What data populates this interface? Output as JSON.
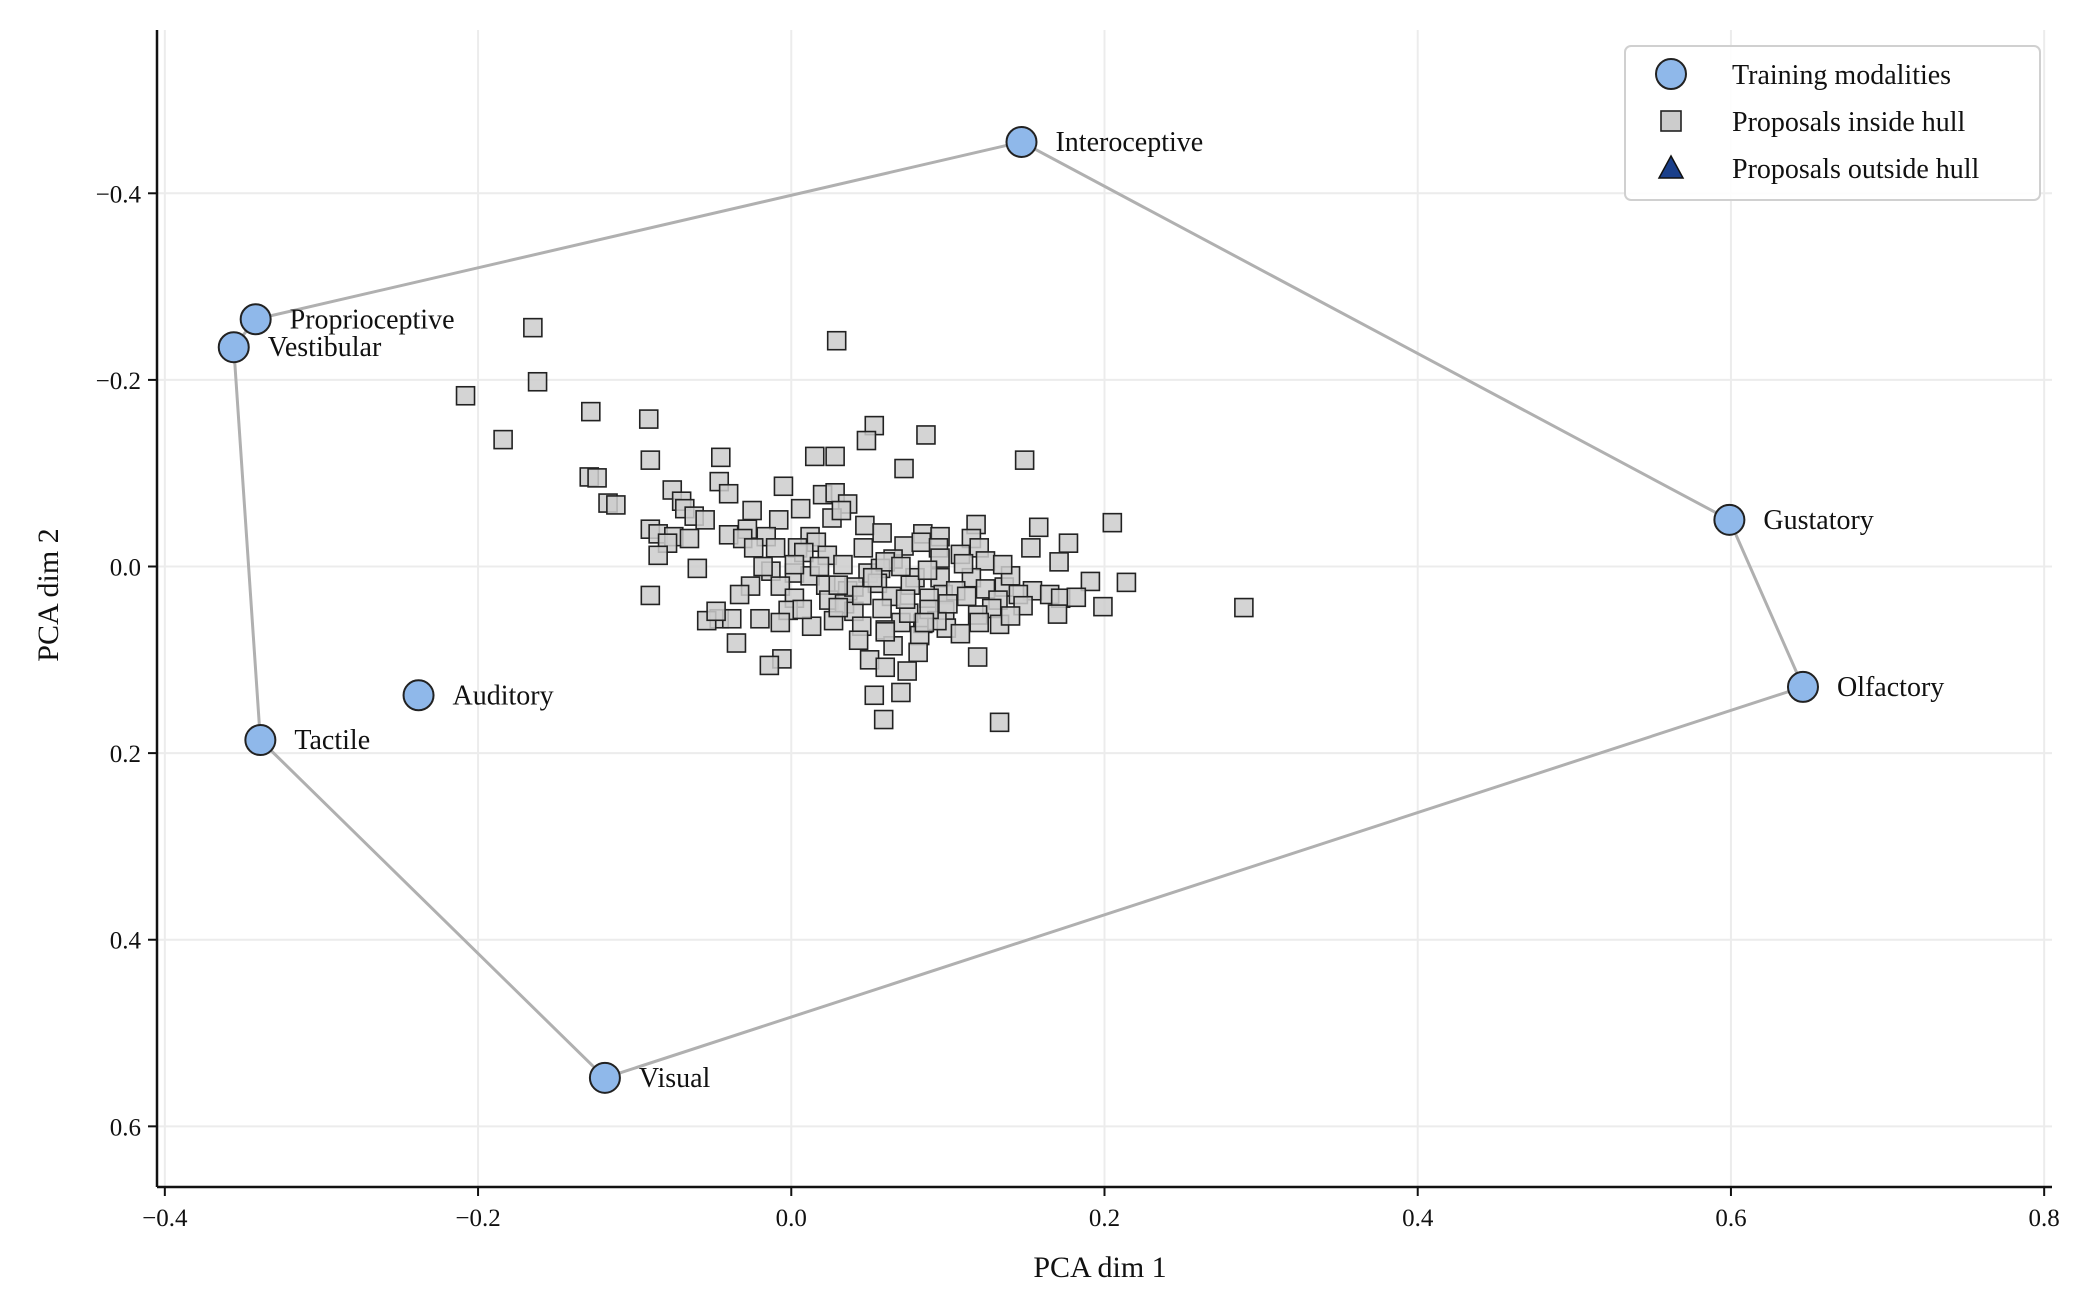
{
  "chart_data": {
    "type": "scatter",
    "xlabel": "PCA dim 1",
    "ylabel": "PCA dim 2",
    "xlim": [
      -0.405,
      0.805
    ],
    "ylim": [
      -0.575,
      0.665
    ],
    "y_inverted": true,
    "xticks": [
      -0.4,
      -0.2,
      0.0,
      0.2,
      0.4,
      0.6,
      0.8
    ],
    "yticks": [
      -0.4,
      -0.2,
      0.0,
      0.2,
      0.4,
      0.6
    ],
    "xtick_labels": [
      "−0.4",
      "−0.2",
      "0.0",
      "0.2",
      "0.4",
      "0.6",
      "0.8"
    ],
    "ytick_labels": [
      "−0.4",
      "−0.2",
      "0.0",
      "0.2",
      "0.4",
      "0.6"
    ],
    "grid": true,
    "legend_position": "top-right",
    "colors": {
      "modality": "#8fb8ea",
      "proposal": "#cccccc",
      "outside": "#1a3f8a",
      "hull": "#b0b0b0",
      "grid": "#ececec"
    },
    "legend": [
      {
        "label": "Training modalities",
        "marker": "circle"
      },
      {
        "label": "Proposals inside hull",
        "marker": "square"
      },
      {
        "label": "Proposals outside hull",
        "marker": "triangle"
      }
    ],
    "hull_order": [
      "Interoceptive",
      "Gustatory",
      "Olfactory",
      "Visual",
      "Tactile",
      "Vestibular",
      "Proprioceptive"
    ],
    "series": [
      {
        "name": "Training modalities",
        "points": [
          {
            "label": "Interoceptive",
            "x": 0.147,
            "y": -0.455
          },
          {
            "label": "Proprioceptive",
            "x": -0.342,
            "y": -0.265
          },
          {
            "label": "Vestibular",
            "x": -0.356,
            "y": -0.235
          },
          {
            "label": "Gustatory",
            "x": 0.599,
            "y": -0.05
          },
          {
            "label": "Olfactory",
            "x": 0.646,
            "y": 0.129
          },
          {
            "label": "Auditory",
            "x": -0.238,
            "y": 0.138
          },
          {
            "label": "Tactile",
            "x": -0.339,
            "y": 0.186
          },
          {
            "label": "Visual",
            "x": -0.119,
            "y": 0.548
          }
        ]
      },
      {
        "name": "Proposals inside hull",
        "points": [
          [
            -0.165,
            -0.256
          ],
          [
            0.029,
            -0.242
          ],
          [
            -0.162,
            -0.198
          ],
          [
            -0.208,
            -0.183
          ],
          [
            -0.128,
            -0.166
          ],
          [
            -0.184,
            -0.136
          ],
          [
            -0.091,
            -0.158
          ],
          [
            0.053,
            -0.151
          ],
          [
            0.086,
            -0.141
          ],
          [
            0.048,
            -0.135
          ],
          [
            0.015,
            -0.118
          ],
          [
            0.028,
            -0.118
          ],
          [
            -0.045,
            -0.117
          ],
          [
            0.149,
            -0.114
          ],
          [
            0.072,
            -0.105
          ],
          [
            -0.09,
            -0.114
          ],
          [
            -0.129,
            -0.096
          ],
          [
            -0.124,
            -0.095
          ],
          [
            -0.046,
            -0.091
          ],
          [
            -0.005,
            -0.086
          ],
          [
            0.02,
            -0.077
          ],
          [
            0.028,
            -0.079
          ],
          [
            0.036,
            -0.067
          ],
          [
            -0.117,
            -0.068
          ],
          [
            -0.112,
            -0.066
          ],
          [
            -0.076,
            -0.082
          ],
          [
            -0.07,
            -0.07
          ],
          [
            -0.068,
            -0.062
          ],
          [
            -0.04,
            -0.078
          ],
          [
            -0.025,
            -0.06
          ],
          [
            0.006,
            -0.062
          ],
          [
            -0.062,
            -0.054
          ],
          [
            -0.055,
            -0.05
          ],
          [
            -0.008,
            -0.05
          ],
          [
            0.026,
            -0.052
          ],
          [
            0.032,
            -0.06
          ],
          [
            0.047,
            -0.044
          ],
          [
            0.205,
            -0.047
          ],
          [
            -0.09,
            -0.04
          ],
          [
            -0.085,
            -0.035
          ],
          [
            -0.075,
            -0.032
          ],
          [
            -0.04,
            -0.034
          ],
          [
            -0.028,
            -0.04
          ],
          [
            -0.016,
            -0.032
          ],
          [
            0.012,
            -0.032
          ],
          [
            0.058,
            -0.036
          ],
          [
            0.084,
            -0.035
          ],
          [
            0.095,
            -0.032
          ],
          [
            0.118,
            -0.045
          ],
          [
            0.115,
            -0.03
          ],
          [
            -0.079,
            -0.025
          ],
          [
            -0.065,
            -0.03
          ],
          [
            -0.031,
            -0.03
          ],
          [
            0.004,
            -0.02
          ],
          [
            0.016,
            -0.026
          ],
          [
            0.072,
            -0.022
          ],
          [
            0.083,
            -0.026
          ],
          [
            0.094,
            -0.02
          ],
          [
            0.12,
            -0.02
          ],
          [
            0.153,
            -0.02
          ],
          [
            -0.085,
            -0.012
          ],
          [
            -0.06,
            0.002
          ],
          [
            -0.024,
            -0.02
          ],
          [
            -0.01,
            -0.02
          ],
          [
            0.008,
            -0.015
          ],
          [
            0.023,
            -0.012
          ],
          [
            0.046,
            -0.02
          ],
          [
            0.065,
            -0.008
          ],
          [
            0.095,
            -0.009
          ],
          [
            0.108,
            -0.013
          ],
          [
            0.124,
            -0.006
          ],
          [
            0.171,
            -0.005
          ],
          [
            -0.013,
            0.005
          ],
          [
            0.002,
            0.007
          ],
          [
            0.033,
            -0.002
          ],
          [
            0.049,
            0.007
          ],
          [
            0.057,
            0.002
          ],
          [
            0.079,
            0.012
          ],
          [
            0.095,
            0.012
          ],
          [
            0.115,
            0.012
          ],
          [
            0.124,
            0.024
          ],
          [
            0.136,
            0.022
          ],
          [
            0.154,
            0.026
          ],
          [
            0.165,
            0.03
          ],
          [
            0.191,
            0.016
          ],
          [
            0.214,
            0.017
          ],
          [
            -0.026,
            0.021
          ],
          [
            -0.007,
            0.021
          ],
          [
            0.012,
            0.01
          ],
          [
            0.022,
            0.02
          ],
          [
            0.036,
            0.026
          ],
          [
            0.055,
            0.018
          ],
          [
            0.076,
            0.02
          ],
          [
            0.097,
            0.03
          ],
          [
            0.105,
            0.026
          ],
          [
            0.132,
            0.036
          ],
          [
            0.145,
            0.03
          ],
          [
            0.172,
            0.034
          ],
          [
            0.182,
            0.033
          ],
          [
            -0.09,
            0.031
          ],
          [
            -0.033,
            0.03
          ],
          [
            0.002,
            0.034
          ],
          [
            0.024,
            0.036
          ],
          [
            0.034,
            0.04
          ],
          [
            0.064,
            0.032
          ],
          [
            0.088,
            0.034
          ],
          [
            0.098,
            0.047
          ],
          [
            0.128,
            0.045
          ],
          [
            0.17,
            0.051
          ],
          [
            0.199,
            0.043
          ],
          [
            -0.046,
            0.056
          ],
          [
            -0.038,
            0.056
          ],
          [
            -0.02,
            0.056
          ],
          [
            -0.002,
            0.047
          ],
          [
            0.04,
            0.048
          ],
          [
            0.058,
            0.045
          ],
          [
            0.07,
            0.06
          ],
          [
            0.084,
            0.061
          ],
          [
            0.099,
            0.066
          ],
          [
            0.119,
            0.052
          ],
          [
            0.133,
            0.062
          ],
          [
            0.148,
            0.042
          ],
          [
            -0.054,
            0.058
          ],
          [
            -0.007,
            0.06
          ],
          [
            0.027,
            0.058
          ],
          [
            0.045,
            0.064
          ],
          [
            0.06,
            0.068
          ],
          [
            0.082,
            0.074
          ],
          [
            0.093,
            0.058
          ],
          [
            0.289,
            0.044
          ],
          [
            0.075,
            0.05
          ],
          [
            -0.035,
            0.082
          ],
          [
            0.043,
            0.079
          ],
          [
            0.065,
            0.085
          ],
          [
            0.081,
            0.092
          ],
          [
            0.05,
            0.1
          ],
          [
            -0.006,
            0.099
          ],
          [
            0.06,
            0.108
          ],
          [
            -0.014,
            0.106
          ],
          [
            0.074,
            0.112
          ],
          [
            0.119,
            0.097
          ],
          [
            0.053,
            0.138
          ],
          [
            0.07,
            0.135
          ],
          [
            0.133,
            0.167
          ],
          [
            0.059,
            0.164
          ],
          [
            0.158,
            -0.042
          ],
          [
            0.177,
            -0.025
          ],
          [
            0.06,
            -0.005
          ],
          [
            0.11,
            -0.003
          ],
          [
            0.002,
            -0.002
          ],
          [
            0.112,
            0.032
          ],
          [
            0.14,
            0.053
          ],
          [
            0.04,
            0.022
          ],
          [
            -0.048,
            0.048
          ],
          [
            0.013,
            0.064
          ],
          [
            0.087,
            0.004
          ],
          [
            0.03,
            0.02
          ],
          [
            0.06,
            0.07
          ],
          [
            0.1,
            0.04
          ],
          [
            0.018,
            0.0
          ],
          [
            0.073,
            0.035
          ],
          [
            0.12,
            0.06
          ],
          [
            0.045,
            0.031
          ],
          [
            0.088,
            0.046
          ],
          [
            0.007,
            0.046
          ],
          [
            0.14,
            0.01
          ],
          [
            0.07,
            0.0
          ],
          [
            0.03,
            0.044
          ],
          [
            0.108,
            0.072
          ],
          [
            0.052,
            0.012
          ],
          [
            0.085,
            0.06
          ],
          [
            -0.018,
            0.0
          ],
          [
            0.135,
            -0.002
          ]
        ]
      },
      {
        "name": "Proposals outside hull",
        "points": []
      }
    ]
  }
}
